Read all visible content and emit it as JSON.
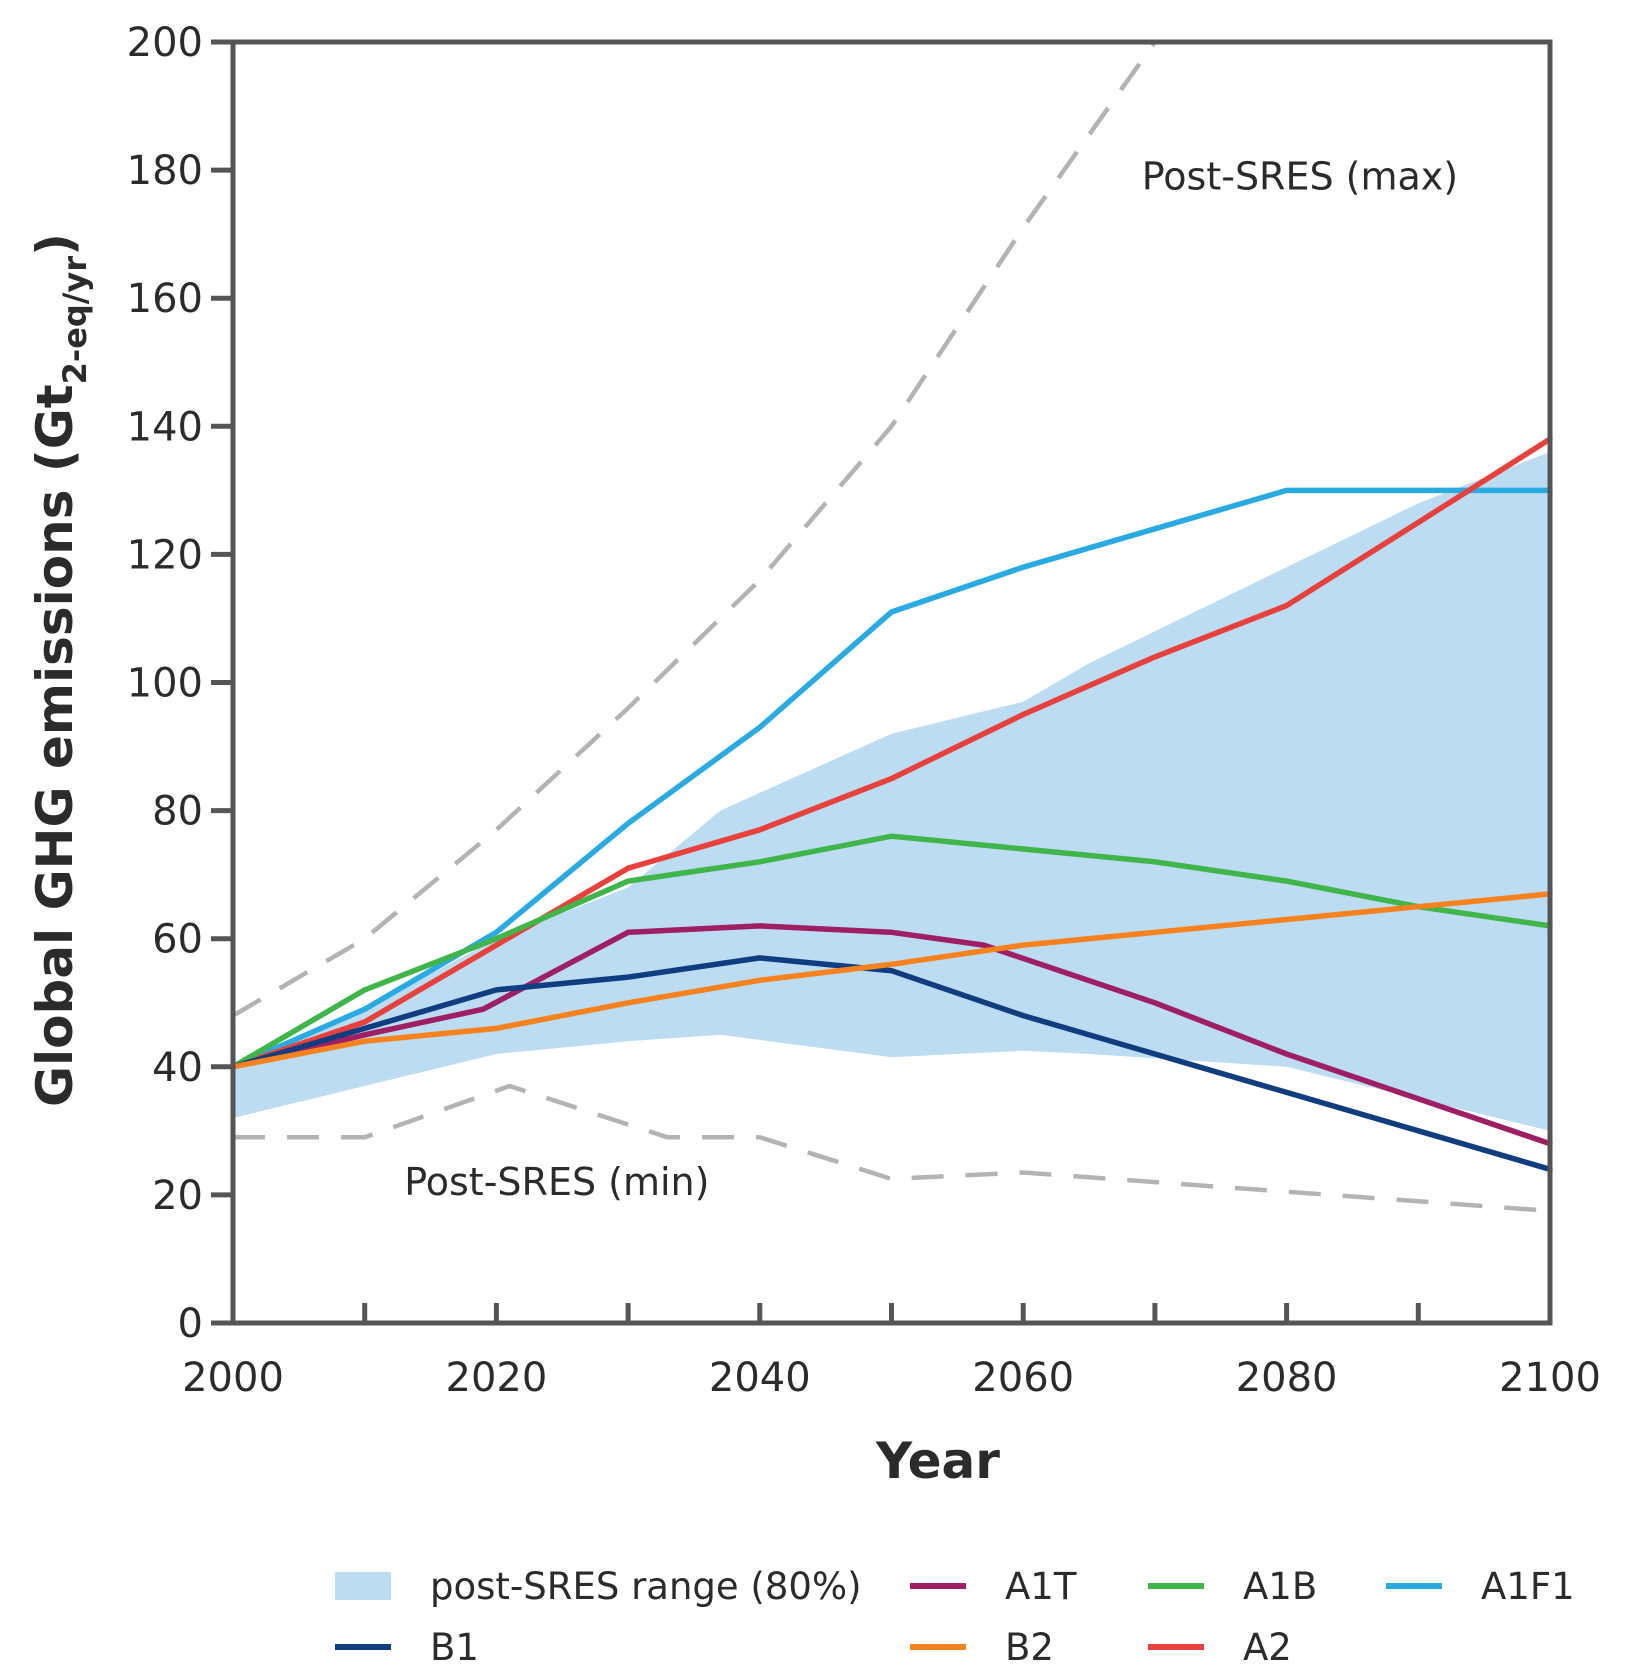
{
  "chart_data": {
    "type": "line",
    "xlabel": "Year",
    "ylabel_main": "Global GHG emissions (Gt",
    "ylabel_sub": "2-eq/yr",
    "ylabel_close": ")",
    "xlim": [
      2000,
      2100
    ],
    "ylim": [
      0,
      200
    ],
    "x_ticks": [
      2000,
      2020,
      2040,
      2060,
      2080,
      2100
    ],
    "x_minor_ticks": [
      2010,
      2030,
      2050,
      2070,
      2090
    ],
    "y_ticks": [
      0,
      20,
      40,
      60,
      80,
      100,
      120,
      140,
      160,
      180,
      200
    ],
    "grid": false,
    "legend_position": "bottom",
    "annotations": [
      {
        "text": "Post-SRES (max)",
        "x": 2069,
        "y": 177
      },
      {
        "text": "Post-SRES (min)",
        "x": 2013,
        "y": 20
      }
    ],
    "range_band": {
      "name": "post-SRES range (80%)",
      "color": "#bcdcf2",
      "x": [
        2000,
        2010,
        2020,
        2030,
        2037,
        2050,
        2060,
        2065,
        2080,
        2090,
        2100
      ],
      "lower": [
        32,
        37,
        42,
        44,
        45,
        41.5,
        42.5,
        42,
        40,
        35,
        30
      ],
      "upper": [
        40,
        49,
        60,
        68,
        80,
        92,
        97,
        103,
        118,
        128,
        136
      ]
    },
    "dashed_bounds": [
      {
        "name": "Post-SRES (max)",
        "color": "#b3b3b3",
        "x": [
          2000,
          2010,
          2020,
          2030,
          2040,
          2050,
          2060,
          2070
        ],
        "y": [
          48,
          60,
          77,
          96,
          116,
          140,
          171,
          200
        ]
      },
      {
        "name": "Post-SRES (min)",
        "color": "#b3b3b3",
        "x": [
          2000,
          2010,
          2021,
          2033,
          2040,
          2050,
          2060,
          2080,
          2090,
          2100
        ],
        "y": [
          29,
          29,
          37,
          29,
          29,
          22.5,
          23.5,
          20.5,
          19,
          17.5
        ]
      }
    ],
    "series": [
      {
        "name": "A1F1",
        "color": "#29abe2",
        "x": [
          2000,
          2010,
          2020,
          2030,
          2040,
          2050,
          2060,
          2070,
          2080,
          2090,
          2100
        ],
        "y": [
          40,
          49,
          61,
          78,
          93,
          111,
          118,
          124,
          130,
          130,
          130
        ]
      },
      {
        "name": "A2",
        "color": "#e8403a",
        "x": [
          2000,
          2010,
          2020,
          2030,
          2040,
          2050,
          2060,
          2070,
          2080,
          2090,
          2100
        ],
        "y": [
          40,
          47,
          59,
          71,
          77,
          85,
          95,
          104,
          112,
          125,
          138
        ]
      },
      {
        "name": "A1B",
        "color": "#3fb54a",
        "x": [
          2000,
          2010,
          2020,
          2030,
          2040,
          2050,
          2060,
          2070,
          2080,
          2090,
          2100
        ],
        "y": [
          40,
          52,
          60,
          69,
          72,
          76,
          74,
          72,
          69,
          65,
          62
        ]
      },
      {
        "name": "A1T",
        "color": "#9e1f63",
        "x": [
          2000,
          2010,
          2019,
          2030,
          2040,
          2050,
          2057,
          2070,
          2080,
          2090,
          2100
        ],
        "y": [
          40,
          45,
          49,
          61,
          62,
          61,
          59,
          50,
          42,
          35,
          28
        ]
      },
      {
        "name": "B1",
        "color": "#0f3d7f",
        "x": [
          2000,
          2010,
          2020,
          2030,
          2040,
          2050,
          2060,
          2070,
          2080,
          2090,
          2100
        ],
        "y": [
          40,
          46,
          52,
          54,
          57,
          55,
          48,
          42,
          36,
          30,
          24
        ]
      },
      {
        "name": "B2",
        "color": "#f5821f",
        "x": [
          2000,
          2010,
          2020,
          2030,
          2040,
          2050,
          2060,
          2070,
          2080,
          2090,
          2100
        ],
        "y": [
          40,
          44,
          46,
          50,
          53.5,
          56,
          59,
          61,
          63,
          65,
          67
        ]
      }
    ],
    "legend": [
      {
        "label": "post-SRES range (80%)",
        "kind": "band",
        "color": "#bcdcf2"
      },
      {
        "label": "A1T",
        "kind": "line",
        "color": "#9e1f63"
      },
      {
        "label": "A1B",
        "kind": "line",
        "color": "#3fb54a"
      },
      {
        "label": "A1F1",
        "kind": "line",
        "color": "#29abe2"
      },
      {
        "label": "B1",
        "kind": "line",
        "color": "#0f3d7f"
      },
      {
        "label": "B2",
        "kind": "line",
        "color": "#f5821f"
      },
      {
        "label": "A2",
        "kind": "line",
        "color": "#e8403a"
      }
    ],
    "axis_color": "#555555"
  }
}
